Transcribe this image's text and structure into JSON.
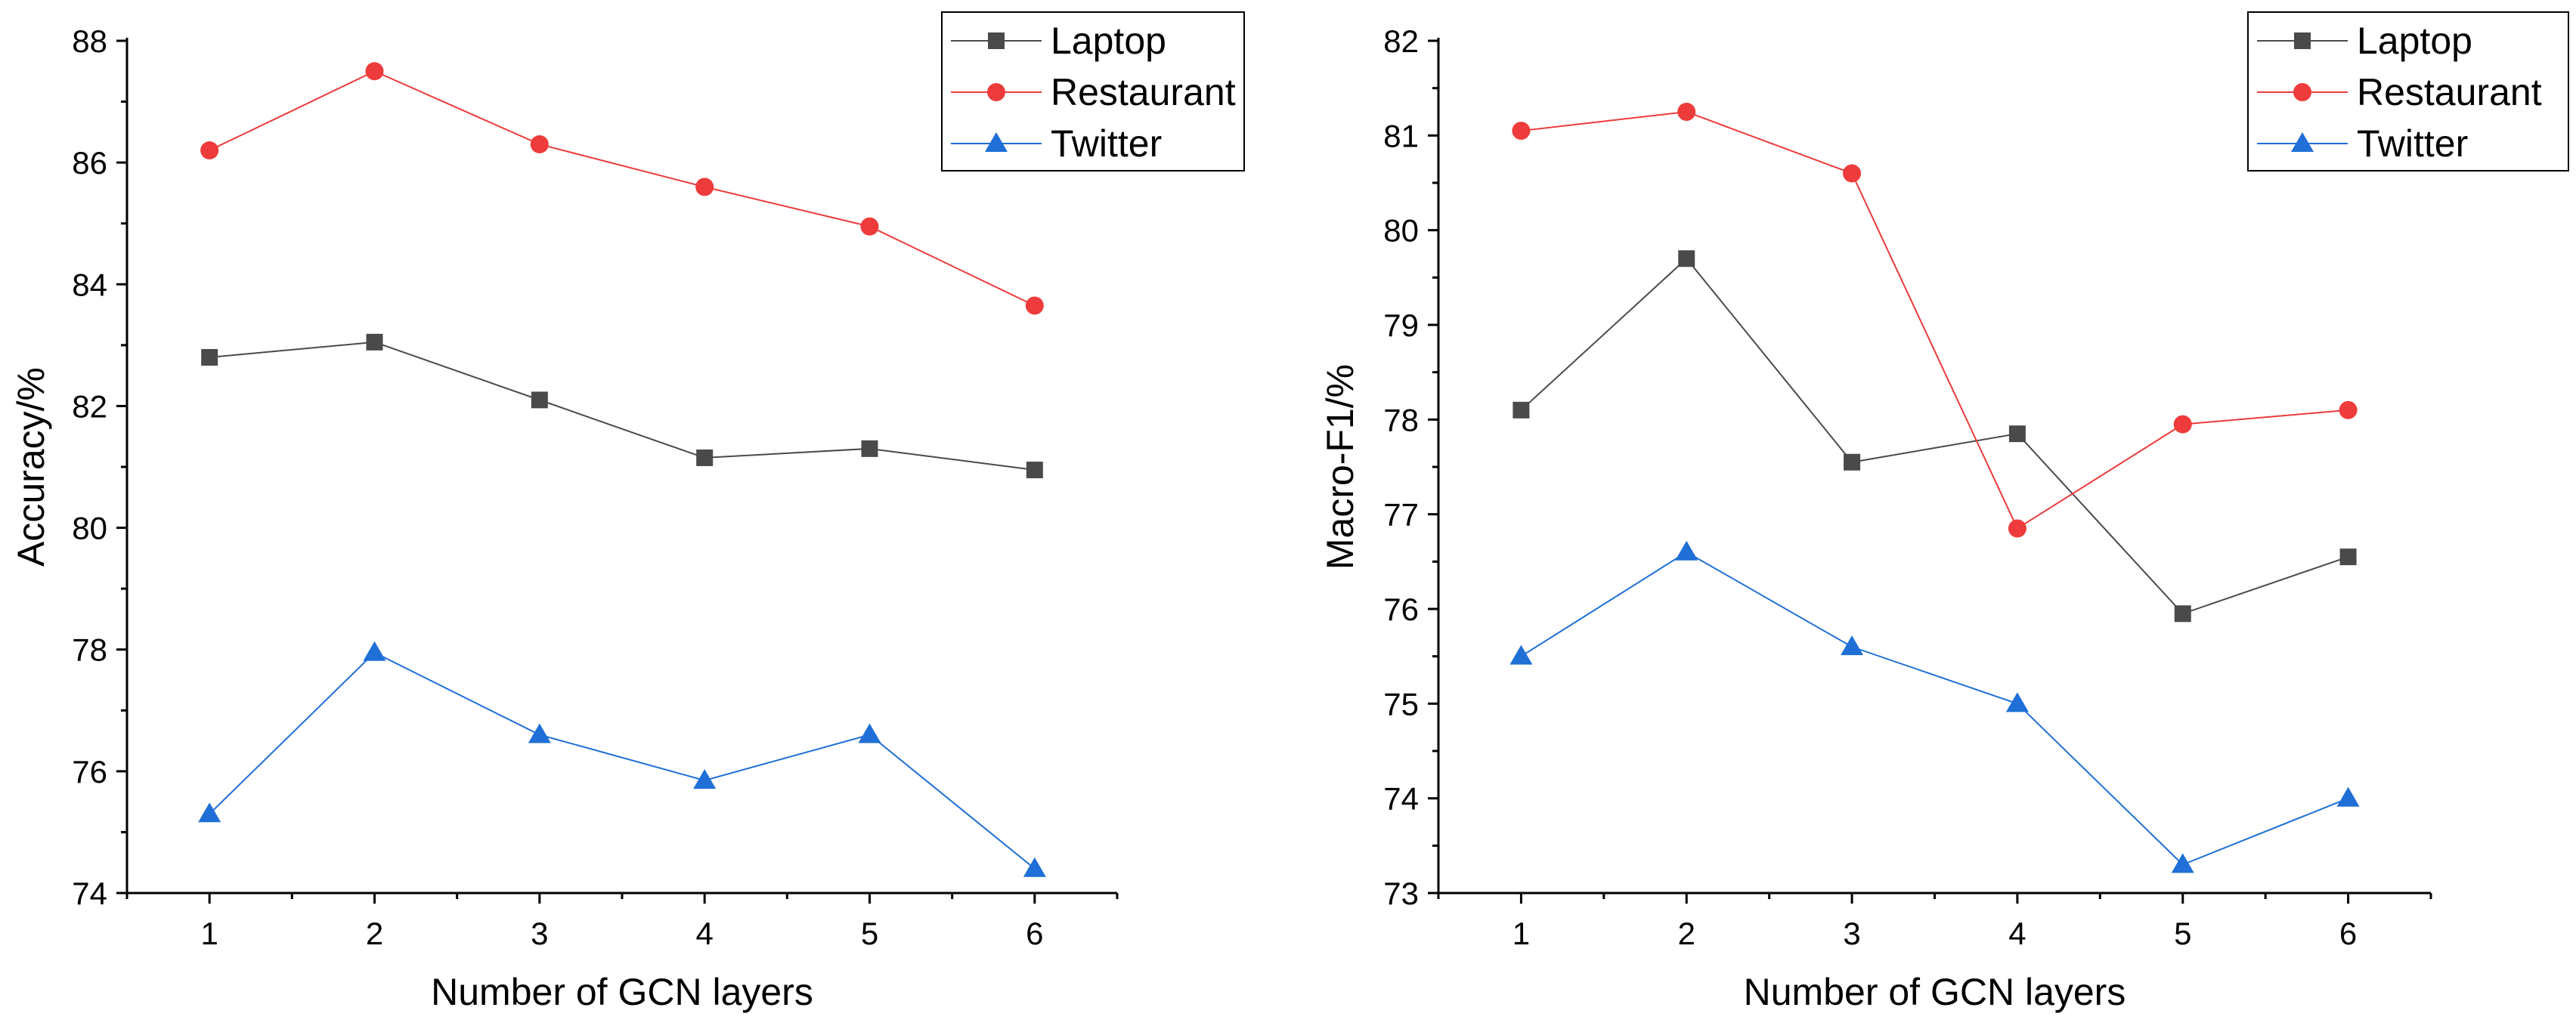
{
  "chart_data": [
    {
      "type": "line",
      "xlabel": "Number of GCN layers",
      "ylabel": "Accuracy/%",
      "x": [
        1,
        2,
        3,
        4,
        5,
        6
      ],
      "xlim": [
        0.5,
        6.5
      ],
      "ylim": [
        74,
        88
      ],
      "yticks": [
        74,
        76,
        78,
        80,
        82,
        84,
        86,
        88
      ],
      "legend_position": "top-right",
      "series": [
        {
          "name": "Laptop",
          "marker": "square",
          "color": "#4a4a4a",
          "values": [
            82.8,
            83.05,
            82.1,
            81.15,
            81.3,
            80.95
          ]
        },
        {
          "name": "Restaurant",
          "marker": "circle",
          "color": "#ee3b3b",
          "values": [
            86.2,
            87.5,
            86.3,
            85.6,
            84.95,
            83.65
          ]
        },
        {
          "name": "Twitter",
          "marker": "triangle",
          "color": "#1f6fd6",
          "values": [
            75.3,
            77.95,
            76.6,
            75.85,
            76.6,
            74.4
          ]
        }
      ]
    },
    {
      "type": "line",
      "xlabel": "Number of GCN layers",
      "ylabel": "Macro-F1/%",
      "x": [
        1,
        2,
        3,
        4,
        5,
        6
      ],
      "xlim": [
        0.5,
        6.5
      ],
      "ylim": [
        73,
        82
      ],
      "yticks": [
        73,
        74,
        75,
        76,
        77,
        78,
        79,
        80,
        81,
        82
      ],
      "legend_position": "top-right",
      "series": [
        {
          "name": "Laptop",
          "marker": "square",
          "color": "#4a4a4a",
          "values": [
            78.1,
            79.7,
            77.55,
            77.85,
            75.95,
            76.55
          ]
        },
        {
          "name": "Restaurant",
          "marker": "circle",
          "color": "#ee3b3b",
          "values": [
            81.05,
            81.25,
            80.6,
            76.85,
            77.95,
            78.1
          ]
        },
        {
          "name": "Twitter",
          "marker": "triangle",
          "color": "#1f6fd6",
          "values": [
            75.5,
            76.6,
            75.6,
            75.0,
            73.3,
            74.0
          ]
        }
      ]
    }
  ]
}
